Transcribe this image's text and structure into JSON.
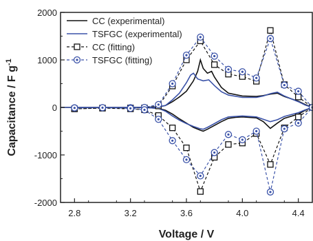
{
  "chart_data": {
    "type": "line",
    "xlabel": "Voltage / V",
    "ylabel_main": "Capacitance / F g",
    "ylabel_sup": "-1",
    "xlim": [
      2.7,
      4.5
    ],
    "ylim": [
      -2000,
      2000
    ],
    "xticks": [
      "2.8",
      "3.2",
      "3.6",
      "4.0",
      "4.4"
    ],
    "xtick_values": [
      2.8,
      3.2,
      3.6,
      4.0,
      4.4
    ],
    "yticks": [
      "-2000",
      "-1000",
      "0",
      "1000",
      "2000"
    ],
    "ytick_values": [
      -2000,
      -1000,
      0,
      1000,
      2000
    ],
    "legend_position": "top-left",
    "series": [
      {
        "name": "CC (experimental)",
        "color": "#111111",
        "style": "solid",
        "marker": "none",
        "points": [
          [
            2.7,
            0
          ],
          [
            3.2,
            0
          ],
          [
            3.4,
            10
          ],
          [
            3.45,
            40
          ],
          [
            3.5,
            120
          ],
          [
            3.55,
            220
          ],
          [
            3.6,
            340
          ],
          [
            3.65,
            560
          ],
          [
            3.68,
            760
          ],
          [
            3.7,
            1000
          ],
          [
            3.72,
            820
          ],
          [
            3.75,
            720
          ],
          [
            3.78,
            760
          ],
          [
            3.8,
            640
          ],
          [
            3.85,
            420
          ],
          [
            3.9,
            300
          ],
          [
            4.0,
            240
          ],
          [
            4.1,
            230
          ],
          [
            4.15,
            250
          ],
          [
            4.2,
            280
          ],
          [
            4.25,
            300
          ],
          [
            4.3,
            230
          ],
          [
            4.4,
            130
          ],
          [
            4.45,
            60
          ],
          [
            4.5,
            0
          ],
          [
            4.45,
            -60
          ],
          [
            4.4,
            -140
          ],
          [
            4.3,
            -230
          ],
          [
            4.25,
            -330
          ],
          [
            4.2,
            -440
          ],
          [
            4.15,
            -300
          ],
          [
            4.1,
            -220
          ],
          [
            4.0,
            -200
          ],
          [
            3.95,
            -210
          ],
          [
            3.9,
            -230
          ],
          [
            3.85,
            -300
          ],
          [
            3.8,
            -380
          ],
          [
            3.75,
            -460
          ],
          [
            3.72,
            -500
          ],
          [
            3.7,
            -480
          ],
          [
            3.65,
            -420
          ],
          [
            3.6,
            -330
          ],
          [
            3.55,
            -240
          ],
          [
            3.5,
            -140
          ],
          [
            3.45,
            -60
          ],
          [
            3.4,
            -20
          ],
          [
            3.3,
            0
          ],
          [
            2.7,
            0
          ]
        ]
      },
      {
        "name": "TSFGC (experimental)",
        "color": "#3a52a8",
        "style": "solid",
        "marker": "none",
        "points": [
          [
            2.7,
            0
          ],
          [
            3.2,
            0
          ],
          [
            3.4,
            10
          ],
          [
            3.45,
            40
          ],
          [
            3.5,
            160
          ],
          [
            3.55,
            300
          ],
          [
            3.6,
            520
          ],
          [
            3.63,
            680
          ],
          [
            3.65,
            720
          ],
          [
            3.68,
            600
          ],
          [
            3.72,
            560
          ],
          [
            3.76,
            580
          ],
          [
            3.8,
            460
          ],
          [
            3.85,
            330
          ],
          [
            3.9,
            260
          ],
          [
            4.0,
            210
          ],
          [
            4.1,
            210
          ],
          [
            4.15,
            240
          ],
          [
            4.2,
            290
          ],
          [
            4.25,
            320
          ],
          [
            4.3,
            240
          ],
          [
            4.4,
            120
          ],
          [
            4.45,
            50
          ],
          [
            4.5,
            0
          ],
          [
            4.45,
            -50
          ],
          [
            4.4,
            -110
          ],
          [
            4.3,
            -190
          ],
          [
            4.25,
            -260
          ],
          [
            4.2,
            -300
          ],
          [
            4.15,
            -250
          ],
          [
            4.1,
            -200
          ],
          [
            4.0,
            -180
          ],
          [
            3.9,
            -200
          ],
          [
            3.85,
            -260
          ],
          [
            3.8,
            -340
          ],
          [
            3.75,
            -420
          ],
          [
            3.72,
            -460
          ],
          [
            3.7,
            -450
          ],
          [
            3.65,
            -400
          ],
          [
            3.6,
            -340
          ],
          [
            3.55,
            -270
          ],
          [
            3.5,
            -180
          ],
          [
            3.45,
            -80
          ],
          [
            3.4,
            -20
          ],
          [
            3.3,
            0
          ],
          [
            2.7,
            0
          ]
        ]
      },
      {
        "name": "CC (fitting)",
        "color": "#111111",
        "style": "dashed",
        "marker": "square",
        "points": [
          [
            2.8,
            -30
          ],
          [
            3.0,
            -15
          ],
          [
            3.2,
            -10
          ],
          [
            3.3,
            -10
          ],
          [
            3.4,
            30
          ],
          [
            3.5,
            450
          ],
          [
            3.6,
            1000
          ],
          [
            3.7,
            1400
          ],
          [
            3.8,
            900
          ],
          [
            3.9,
            700
          ],
          [
            4.0,
            650
          ],
          [
            4.1,
            550
          ],
          [
            4.2,
            1620
          ],
          [
            4.3,
            480
          ],
          [
            4.4,
            220
          ],
          [
            4.5,
            0
          ],
          [
            4.4,
            -200
          ],
          [
            4.3,
            -430
          ],
          [
            4.2,
            -1200
          ],
          [
            4.1,
            -550
          ],
          [
            4.0,
            -750
          ],
          [
            3.9,
            -780
          ],
          [
            3.8,
            -1050
          ],
          [
            3.7,
            -1770
          ],
          [
            3.6,
            -850
          ],
          [
            3.5,
            -430
          ],
          [
            3.4,
            -170
          ],
          [
            3.3,
            -50
          ],
          [
            3.2,
            -30
          ],
          [
            3.0,
            -15
          ],
          [
            2.8,
            -30
          ]
        ]
      },
      {
        "name": "TSFGC (fitting)",
        "color": "#3a52a8",
        "style": "dashed",
        "marker": "circle",
        "points": [
          [
            2.8,
            -10
          ],
          [
            3.0,
            -5
          ],
          [
            3.2,
            -5
          ],
          [
            3.3,
            0
          ],
          [
            3.4,
            60
          ],
          [
            3.5,
            500
          ],
          [
            3.6,
            1100
          ],
          [
            3.7,
            1480
          ],
          [
            3.8,
            1080
          ],
          [
            3.9,
            800
          ],
          [
            4.0,
            750
          ],
          [
            4.1,
            620
          ],
          [
            4.2,
            1450
          ],
          [
            4.3,
            470
          ],
          [
            4.4,
            340
          ],
          [
            4.5,
            0
          ],
          [
            4.4,
            -330
          ],
          [
            4.3,
            -450
          ],
          [
            4.2,
            -1780
          ],
          [
            4.1,
            -500
          ],
          [
            4.0,
            -680
          ],
          [
            3.9,
            -570
          ],
          [
            3.8,
            -950
          ],
          [
            3.7,
            -1440
          ],
          [
            3.6,
            -1100
          ],
          [
            3.5,
            -700
          ],
          [
            3.4,
            -250
          ],
          [
            3.3,
            -50
          ],
          [
            3.2,
            -20
          ],
          [
            3.0,
            -5
          ],
          [
            2.8,
            -10
          ]
        ]
      }
    ]
  }
}
